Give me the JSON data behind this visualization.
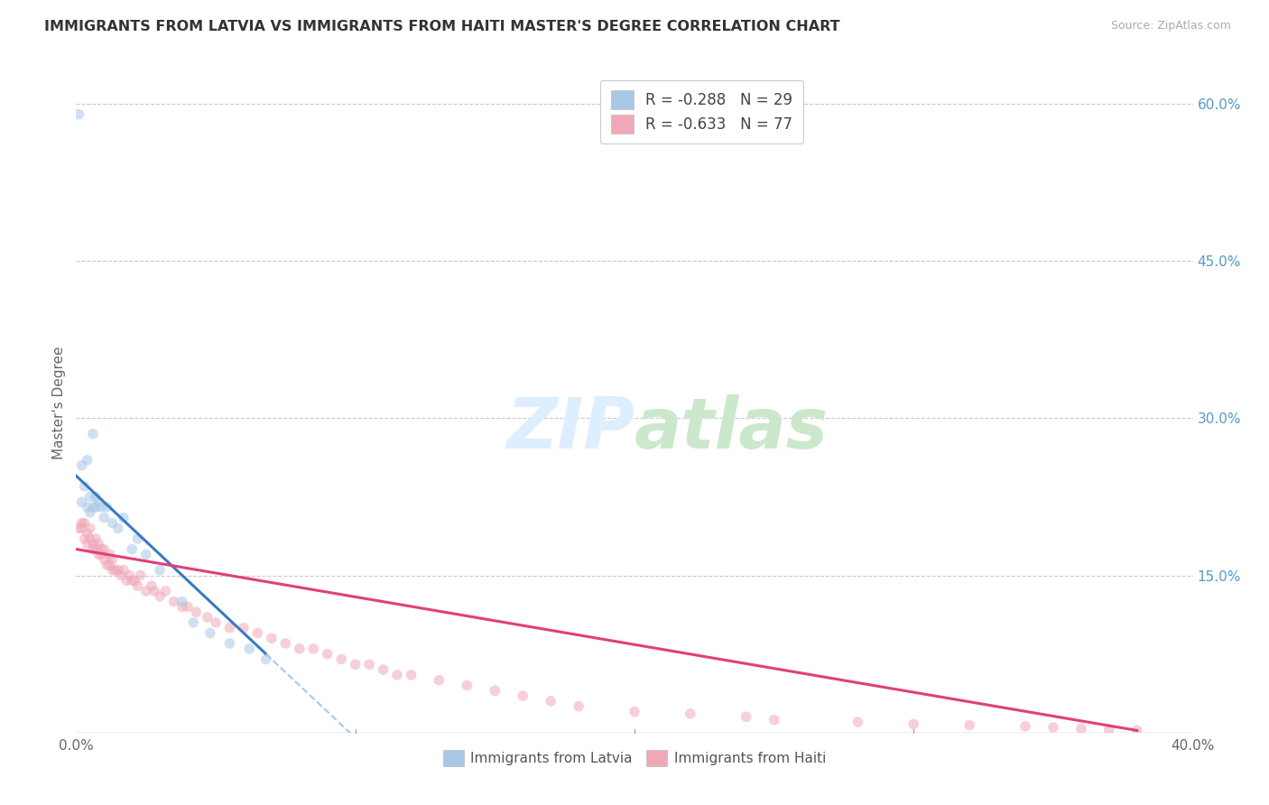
{
  "title": "IMMIGRANTS FROM LATVIA VS IMMIGRANTS FROM HAITI MASTER'S DEGREE CORRELATION CHART",
  "source": "Source: ZipAtlas.com",
  "ylabel": "Master's Degree",
  "right_yticklabels": [
    "",
    "15.0%",
    "30.0%",
    "45.0%",
    "60.0%"
  ],
  "legend_r1": "R = -0.288   N = 29",
  "legend_r2": "R = -0.633   N = 77",
  "legend_label1": "Immigrants from Latvia",
  "legend_label2": "Immigrants from Haiti",
  "latvia_color": "#a8c8e8",
  "haiti_color": "#f0a8b8",
  "trendline_latvia_color": "#3a7abf",
  "trendline_haiti_color": "#e0407a",
  "trendline_latvia_ext_color": "#a8c8e8",
  "background_color": "#ffffff",
  "grid_color": "#c8c8d8",
  "title_color": "#333333",
  "right_axis_color": "#5599cc",
  "latvia_x": [
    0.001,
    0.002,
    0.002,
    0.003,
    0.004,
    0.004,
    0.005,
    0.005,
    0.006,
    0.006,
    0.007,
    0.007,
    0.008,
    0.009,
    0.01,
    0.011,
    0.013,
    0.015,
    0.017,
    0.02,
    0.022,
    0.025,
    0.03,
    0.038,
    0.042,
    0.048,
    0.055,
    0.062,
    0.068
  ],
  "latvia_y": [
    0.59,
    0.255,
    0.22,
    0.235,
    0.215,
    0.26,
    0.225,
    0.21,
    0.215,
    0.285,
    0.225,
    0.215,
    0.22,
    0.215,
    0.205,
    0.215,
    0.2,
    0.195,
    0.205,
    0.175,
    0.185,
    0.17,
    0.155,
    0.125,
    0.105,
    0.095,
    0.085,
    0.08,
    0.07
  ],
  "haiti_x": [
    0.001,
    0.002,
    0.002,
    0.003,
    0.003,
    0.004,
    0.004,
    0.005,
    0.005,
    0.006,
    0.006,
    0.007,
    0.007,
    0.008,
    0.008,
    0.009,
    0.009,
    0.01,
    0.01,
    0.011,
    0.012,
    0.012,
    0.013,
    0.013,
    0.014,
    0.015,
    0.016,
    0.017,
    0.018,
    0.019,
    0.02,
    0.021,
    0.022,
    0.023,
    0.025,
    0.027,
    0.028,
    0.03,
    0.032,
    0.035,
    0.038,
    0.04,
    0.043,
    0.047,
    0.05,
    0.055,
    0.06,
    0.065,
    0.07,
    0.075,
    0.08,
    0.085,
    0.09,
    0.095,
    0.1,
    0.105,
    0.11,
    0.115,
    0.12,
    0.13,
    0.14,
    0.15,
    0.16,
    0.17,
    0.18,
    0.2,
    0.22,
    0.24,
    0.25,
    0.28,
    0.3,
    0.32,
    0.34,
    0.35,
    0.36,
    0.37,
    0.38
  ],
  "haiti_y": [
    0.195,
    0.195,
    0.2,
    0.185,
    0.2,
    0.19,
    0.18,
    0.185,
    0.195,
    0.175,
    0.18,
    0.175,
    0.185,
    0.17,
    0.18,
    0.17,
    0.175,
    0.165,
    0.175,
    0.16,
    0.16,
    0.17,
    0.155,
    0.165,
    0.155,
    0.155,
    0.15,
    0.155,
    0.145,
    0.15,
    0.145,
    0.145,
    0.14,
    0.15,
    0.135,
    0.14,
    0.135,
    0.13,
    0.135,
    0.125,
    0.12,
    0.12,
    0.115,
    0.11,
    0.105,
    0.1,
    0.1,
    0.095,
    0.09,
    0.085,
    0.08,
    0.08,
    0.075,
    0.07,
    0.065,
    0.065,
    0.06,
    0.055,
    0.055,
    0.05,
    0.045,
    0.04,
    0.035,
    0.03,
    0.025,
    0.02,
    0.018,
    0.015,
    0.012,
    0.01,
    0.008,
    0.007,
    0.006,
    0.005,
    0.004,
    0.003,
    0.002
  ],
  "xlim": [
    0.0,
    0.4
  ],
  "ylim": [
    0.0,
    0.63
  ],
  "marker_size": 70,
  "marker_alpha": 0.55,
  "trendline_lv_x0": 0.0,
  "trendline_lv_y0": 0.245,
  "trendline_lv_x1": 0.068,
  "trendline_lv_y1": 0.075,
  "trendline_ht_x0": 0.0,
  "trendline_ht_y0": 0.175,
  "trendline_ht_x1": 0.38,
  "trendline_ht_y1": 0.002
}
